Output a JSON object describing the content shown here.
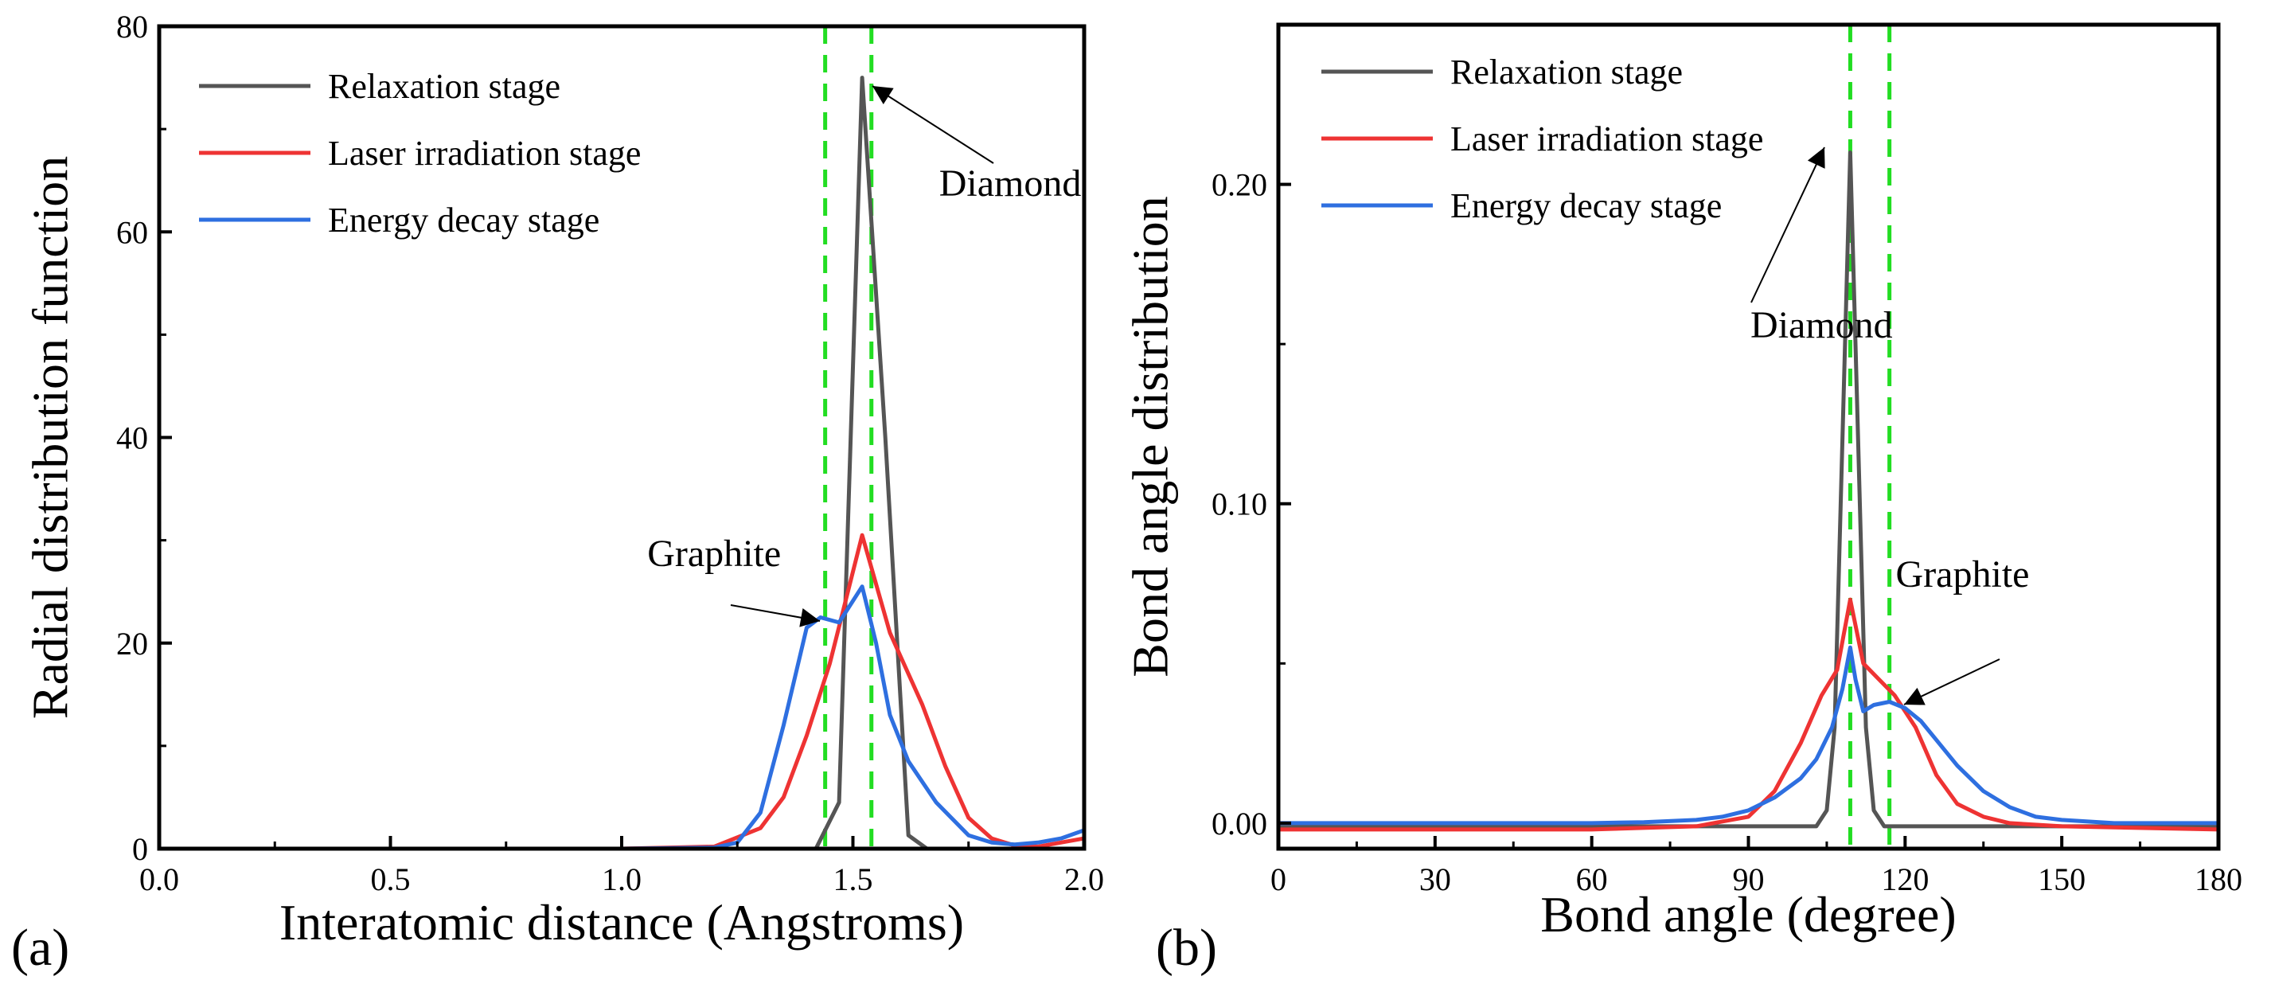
{
  "chart_data": [
    {
      "panel": "(a)",
      "type": "line",
      "xlabel": "Interatomic distance (Angstroms)",
      "ylabel": "Radial distribution function",
      "xlim": [
        0.0,
        2.0
      ],
      "ylim": [
        0,
        80
      ],
      "xticks": [
        0.0,
        0.5,
        1.0,
        1.5,
        2.0
      ],
      "xtick_labels": [
        "0.0",
        "0.5",
        "1.0",
        "1.5",
        "2.0"
      ],
      "yticks": [
        0,
        20,
        40,
        60,
        80
      ],
      "ytick_labels": [
        "0",
        "20",
        "40",
        "60",
        "80"
      ],
      "legend_position": "top-left",
      "reference_lines": [
        1.44,
        1.54
      ],
      "reference_line_color": "#22dd22",
      "series": [
        {
          "name": "Relaxation stage",
          "color": "#555555",
          "x": [
            0.0,
            0.5,
            1.0,
            1.3,
            1.42,
            1.47,
            1.52,
            1.57,
            1.62,
            1.66,
            1.75,
            2.0
          ],
          "y": [
            0,
            0,
            0,
            0,
            0,
            4.5,
            75,
            40,
            1.3,
            0,
            0,
            0
          ]
        },
        {
          "name": "Laser irradiation stage",
          "color": "#ee3333",
          "x": [
            0.0,
            0.5,
            1.0,
            1.2,
            1.3,
            1.35,
            1.4,
            1.45,
            1.52,
            1.58,
            1.65,
            1.7,
            1.75,
            1.8,
            1.85,
            1.9,
            2.0
          ],
          "y": [
            0,
            0,
            0,
            0.2,
            2,
            5,
            11,
            18,
            30.5,
            21,
            14,
            8,
            3,
            1,
            0.3,
            0.2,
            1
          ]
        },
        {
          "name": "Energy decay stage",
          "color": "#2e6fe0",
          "x": [
            0.0,
            0.5,
            1.0,
            1.2,
            1.25,
            1.3,
            1.35,
            1.4,
            1.43,
            1.47,
            1.52,
            1.55,
            1.58,
            1.62,
            1.68,
            1.75,
            1.8,
            1.85,
            1.9,
            1.95,
            2.0
          ],
          "y": [
            0,
            0,
            0,
            0.1,
            0.6,
            3.5,
            12,
            21.5,
            22.5,
            22,
            25.5,
            20,
            13,
            8.5,
            4.5,
            1.3,
            0.6,
            0.4,
            0.6,
            1,
            1.8
          ]
        }
      ],
      "annotations": [
        {
          "text": "Diamond",
          "x": 1.84,
          "y": 63.5
        },
        {
          "text": "Graphite",
          "x": 1.2,
          "y": 27.5
        }
      ]
    },
    {
      "panel": "(b)",
      "type": "line",
      "xlabel": "Bond angle (degree)",
      "ylabel": "Bond angle distribution",
      "xlim": [
        0,
        180
      ],
      "ylim": [
        -0.008,
        0.25
      ],
      "xticks": [
        0,
        30,
        60,
        90,
        120,
        150,
        180
      ],
      "xtick_labels": [
        "0",
        "30",
        "60",
        "90",
        "120",
        "150",
        "180"
      ],
      "yticks": [
        0.0,
        0.1,
        0.2
      ],
      "ytick_labels": [
        "0.00",
        "0.10",
        "0.20"
      ],
      "legend_position": "top-left",
      "reference_lines": [
        109.5,
        117
      ],
      "reference_line_color": "#22dd22",
      "series": [
        {
          "name": "Relaxation stage",
          "color": "#555555",
          "x": [
            0,
            60,
            90,
            100,
            103,
            105,
            106.5,
            108,
            109.5,
            111,
            112.5,
            114,
            116,
            120,
            150,
            180
          ],
          "y": [
            -0.001,
            -0.001,
            -0.001,
            -0.001,
            -0.001,
            0.004,
            0.03,
            0.12,
            0.21,
            0.12,
            0.03,
            0.004,
            -0.001,
            -0.001,
            -0.001,
            -0.001
          ]
        },
        {
          "name": "Laser irradiation stage",
          "color": "#ee3333",
          "x": [
            0,
            60,
            80,
            90,
            95,
            100,
            104,
            107,
            109.5,
            112,
            115,
            118,
            122,
            126,
            130,
            135,
            140,
            150,
            180
          ],
          "y": [
            -0.002,
            -0.002,
            -0.001,
            0.002,
            0.01,
            0.025,
            0.04,
            0.048,
            0.07,
            0.05,
            0.045,
            0.04,
            0.03,
            0.015,
            0.006,
            0.002,
            0.0,
            -0.001,
            -0.002
          ]
        },
        {
          "name": "Energy decay stage",
          "color": "#2e6fe0",
          "x": [
            0,
            60,
            70,
            80,
            85,
            90,
            95,
            100,
            103,
            106,
            108,
            109.5,
            110.5,
            112,
            114,
            117,
            120,
            123,
            126,
            130,
            135,
            140,
            145,
            150,
            160,
            180
          ],
          "y": [
            0,
            0,
            0.0003,
            0.001,
            0.002,
            0.004,
            0.008,
            0.014,
            0.02,
            0.03,
            0.042,
            0.055,
            0.045,
            0.035,
            0.037,
            0.038,
            0.036,
            0.032,
            0.026,
            0.018,
            0.01,
            0.005,
            0.002,
            0.001,
            0,
            0
          ]
        }
      ],
      "annotations": [
        {
          "text": "Diamond",
          "x": 104,
          "y": 0.152
        },
        {
          "text": "Graphite",
          "x": 131,
          "y": 0.074
        }
      ]
    }
  ]
}
